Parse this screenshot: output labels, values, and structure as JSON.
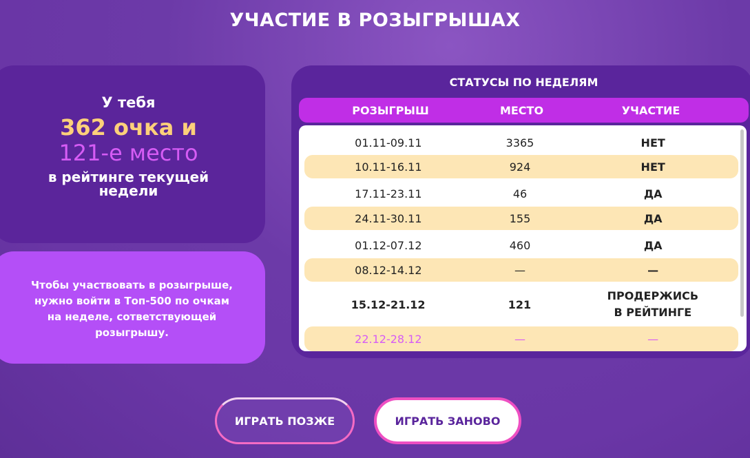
{
  "title": "УЧАСТИЕ В РОЗЫГРЫШАХ",
  "summary": {
    "line1": "У тебя",
    "points": "362 очка и",
    "place": "121-е место",
    "line4": "в рейтинге текущей недели"
  },
  "info": "Чтобы участвовать в розыгрыше, нужно войти в Топ-500 по очкам на неделе, сответствующей розыгрышу.",
  "table": {
    "title": "СТАТУСЫ ПО НЕДЕЛЯМ",
    "columns": [
      "РОЗЫГРЫШ",
      "МЕСТО",
      "УЧАСТИЕ"
    ],
    "rows": [
      [
        "01.11-09.11",
        "3365",
        "НЕТ"
      ],
      [
        "10.11-16.11",
        "924",
        "НЕТ"
      ],
      [
        "17.11-23.11",
        "46",
        "ДА"
      ],
      [
        "24.11-30.11",
        "155",
        "ДА"
      ],
      [
        "01.12-07.12",
        "460",
        "ДА"
      ],
      [
        "08.12-14.12",
        "—",
        "—"
      ],
      [
        "15.12-21.12",
        "121",
        "ПРОДЕРЖИСЬ В РЕЙТИНГЕ"
      ],
      [
        "22.12-28.12",
        "—",
        "—"
      ]
    ]
  },
  "buttons": {
    "later": "ИГРАТЬ ПОЗЖЕ",
    "again": "ИГРАТЬ ЗАНОВО"
  },
  "colors": {
    "accent_yellow": "#fdd07a",
    "accent_pink": "#d65cf5",
    "header": "#c02ee6",
    "stripe": "#fde6b5"
  }
}
